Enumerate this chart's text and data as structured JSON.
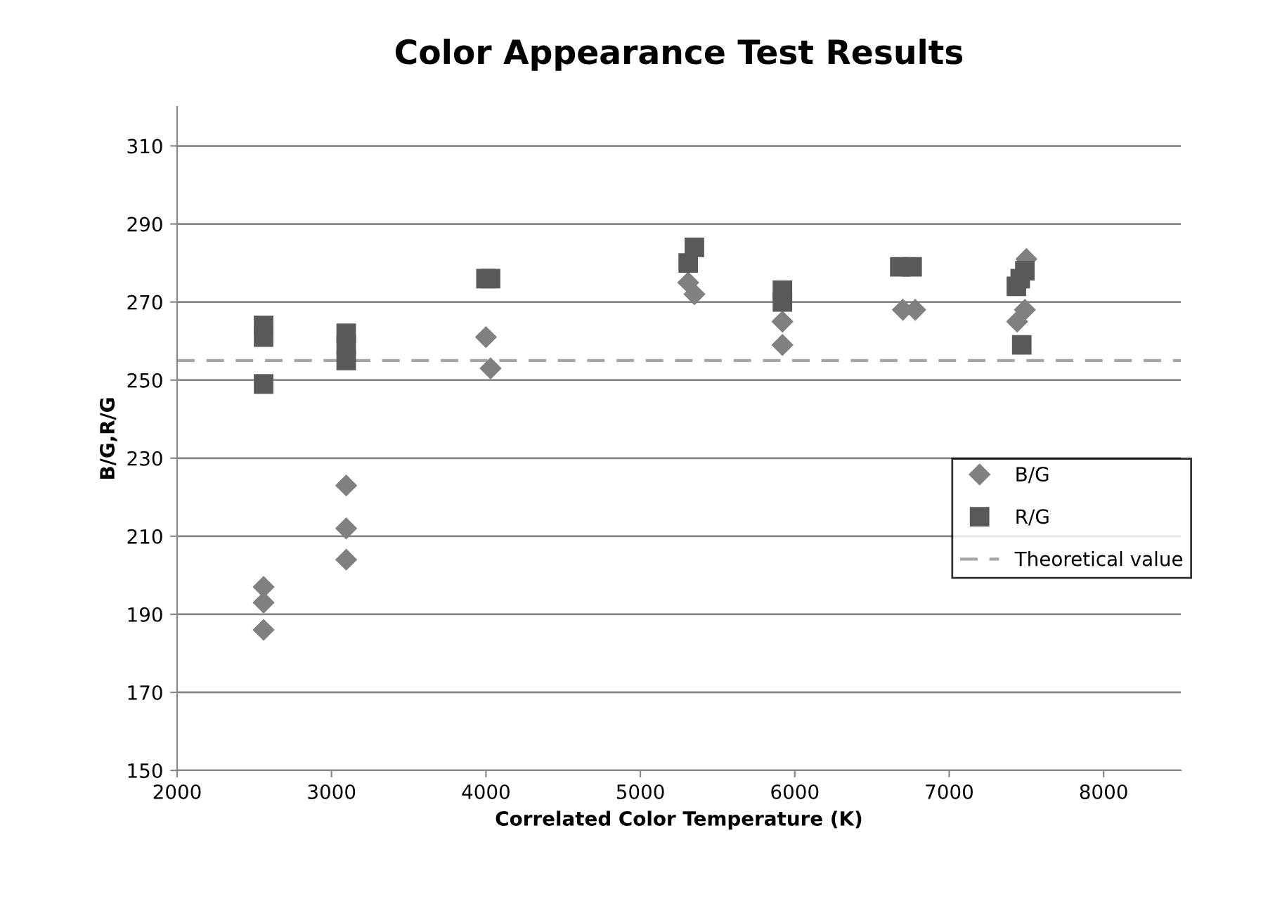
{
  "chart_data": {
    "type": "scatter",
    "title": "Color Appearance Test Results",
    "xlabel": "Correlated Color Temperature (K)",
    "ylabel": "B/G,R/G",
    "series": [
      {
        "name": "B/G",
        "color": "#808080",
        "marker": "diamond",
        "x": [
          2560,
          2560,
          2560,
          3095,
          3095,
          3095,
          4000,
          4030,
          5310,
          5350,
          5920,
          5920,
          6700,
          6780,
          7440,
          7490,
          7500
        ],
        "values": [
          197,
          193,
          186,
          223,
          212,
          204,
          261,
          253,
          275,
          272,
          265,
          259,
          268,
          268,
          265,
          268,
          281
        ]
      },
      {
        "name": "R/G",
        "color": "#595959",
        "marker": "square",
        "x": [
          2560,
          2560,
          2560,
          3095,
          3095,
          3095,
          4000,
          4030,
          5310,
          5350,
          5920,
          5920,
          6680,
          6760,
          7435,
          7460,
          7490,
          7470
        ],
        "values": [
          264,
          261,
          249,
          262,
          259,
          255,
          276,
          276,
          280,
          284,
          273,
          270,
          279,
          279,
          274,
          276,
          278,
          259
        ]
      }
    ],
    "ref_lines": [
      {
        "axis": "y",
        "value": 255,
        "label": "Theoretical value",
        "color": "#a6a6a6",
        "line_style": "dashed"
      }
    ],
    "xlim": [
      2000,
      8500
    ],
    "xticks": [
      2000,
      3000,
      4000,
      5000,
      6000,
      7000,
      8000
    ],
    "ylim": [
      150,
      320
    ],
    "yticks": [
      150,
      170,
      190,
      210,
      230,
      250,
      270,
      290,
      310
    ],
    "grid": "y",
    "legend": "right"
  }
}
